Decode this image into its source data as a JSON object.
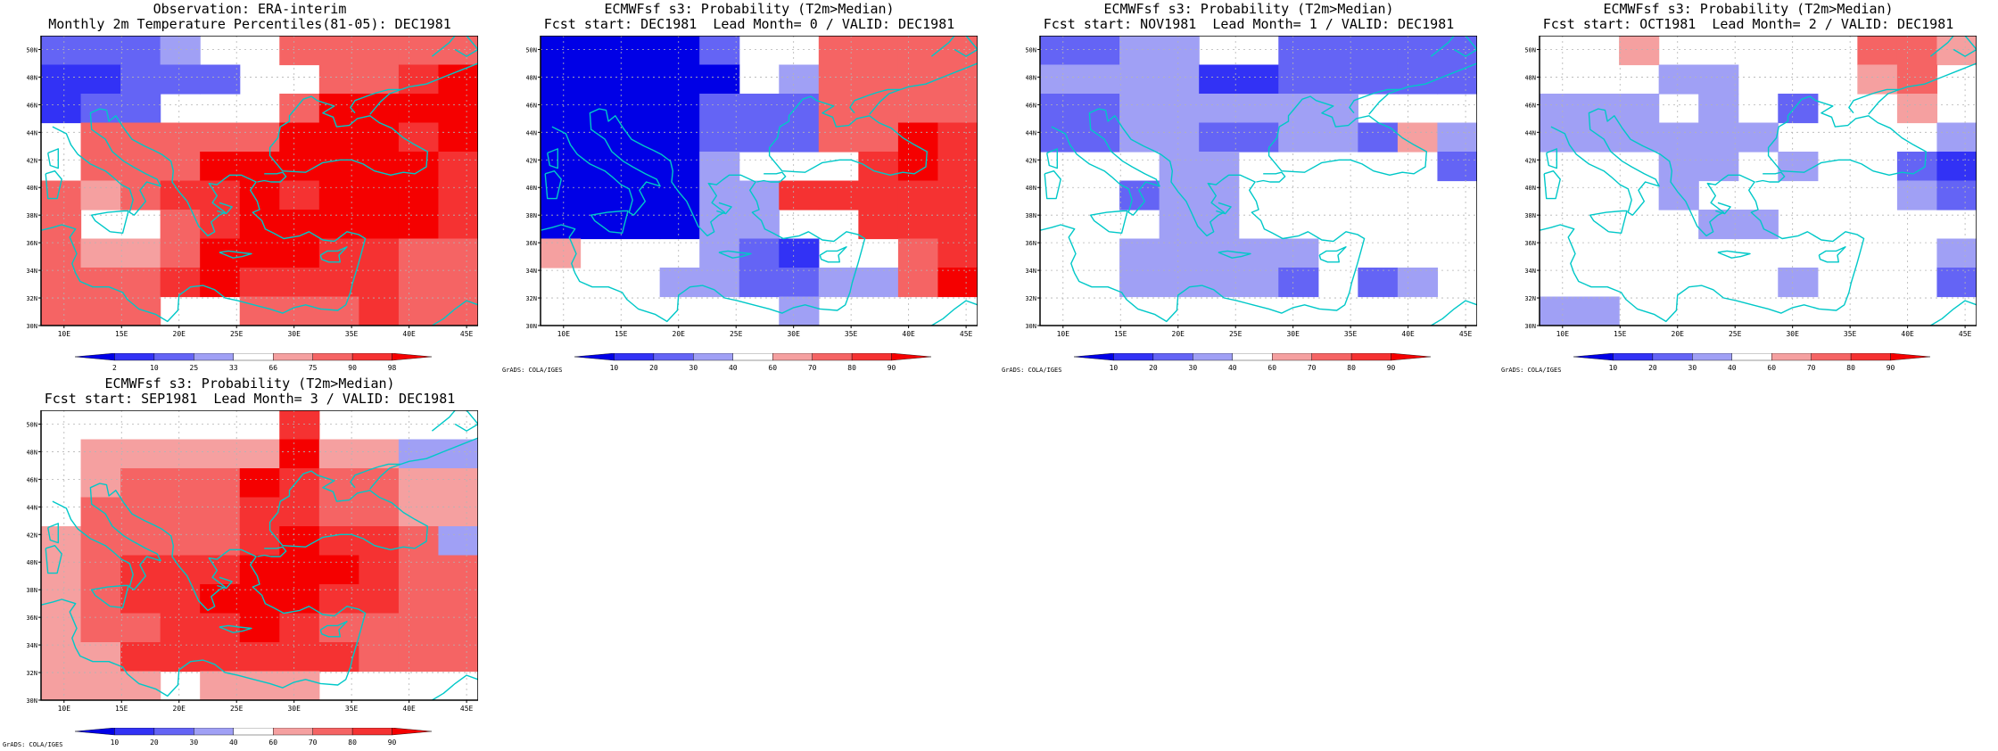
{
  "colors": {
    "ocean_lines": "#00c8c8",
    "frame": "#000000",
    "grid": "#b4b4b4"
  },
  "palette": [
    "#0000e6",
    "#3232f5",
    "#6464f5",
    "#a0a0f5",
    "#ffffff",
    "#f5a0a0",
    "#f56464",
    "#f53232",
    "#f50000"
  ],
  "panels": [
    {
      "title1": "Observation: ERA-interim",
      "title2": "Monthly 2m Temperature Percentiles(81-05): DEC1981",
      "colorbar_labels": [
        "2",
        "10",
        "25",
        "33",
        "66",
        "75",
        "90",
        "98"
      ],
      "credit": "",
      "grid": [
        "22234466666",
        "11222446678",
        "12244468888",
        "46666688878",
        "46668888887",
        "65677878887",
        "64467888887",
        "65568887766",
        "66678777766",
        "66644666766"
      ]
    },
    {
      "title1": "ECMWFsf s3: Probability (T2m>Median)",
      "title2": "Fcst start: DEC1981  Lead Month= 0 / VALID: DEC1981",
      "colorbar_labels": [
        "10",
        "20",
        "30",
        "40",
        "60",
        "70",
        "80",
        "90"
      ],
      "credit": "GrADS: COLA/IGES",
      "grid": [
        "00002446666",
        "00000436666",
        "00002226666",
        "00002226687",
        "00003444787",
        "00003377777",
        "00003344777",
        "54443214467",
        "44433223368",
        "44444434444"
      ]
    },
    {
      "title1": "ECMWFsf s3: Probability (T2m>Median)",
      "title2": "Fcst start: NOV1981  Lead Month= 1 / VALID: DEC1981",
      "colorbar_labels": [
        "10",
        "20",
        "30",
        "40",
        "60",
        "70",
        "80",
        "90"
      ],
      "credit": "GrADS: COLA/IGES",
      "grid": [
        "22334422222",
        "33331122222",
        "22333333444",
        "22332233253",
        "44433444442",
        "44233444444",
        "44433444444",
        "44333334444",
        "44333324234",
        "44444444444"
      ]
    },
    {
      "title1": "ECMWFsf s3: Probability (T2m>Median)",
      "title2": "Fcst start: OCT1981  Lead Month= 2 / VALID: DEC1981",
      "colorbar_labels": [
        "10",
        "20",
        "30",
        "40",
        "60",
        "70",
        "80",
        "90"
      ],
      "credit": "GrADS: COLA/IGES",
      "grid": [
        "44544444665",
        "44433444564",
        "33343424454",
        "33333344443",
        "44433434421",
        "44434444432",
        "44443344444",
        "44444444443",
        "44444434442",
        "33444444444"
      ]
    },
    {
      "title1": "ECMWFsf s3: Probability (T2m>Median)",
      "title2": "Fcst start: SEP1981  Lead Month= 3 / VALID: DEC1981",
      "colorbar_labels": [
        "10",
        "20",
        "30",
        "40",
        "60",
        "70",
        "80",
        "90"
      ],
      "credit": "GrADS: COLA/IGES",
      "grid": [
        "44444474444",
        "45555585533",
        "45666876655",
        "46666776655",
        "56666787763",
        "56777888766",
        "56778887766",
        "56677876666",
        "55777777666",
        "55545554444"
      ]
    }
  ],
  "axes": {
    "x_ticks": [
      "10E",
      "15E",
      "20E",
      "25E",
      "30E",
      "35E",
      "40E",
      "45E"
    ],
    "y_ticks": [
      "30N",
      "32N",
      "34N",
      "36N",
      "38N",
      "40N",
      "42N",
      "44N",
      "46N",
      "48N",
      "50N"
    ],
    "lon_range": [
      8,
      46
    ],
    "lat_range": [
      30,
      51
    ]
  }
}
